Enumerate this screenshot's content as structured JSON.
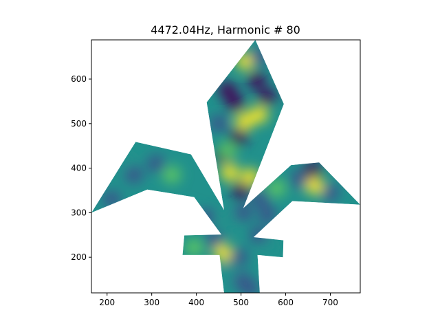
{
  "chart_data": {
    "type": "heatmap",
    "title": "4472.04Hz, Harmonic # 80",
    "xlabel": "",
    "ylabel": "",
    "xlim": [
      165,
      767
    ],
    "ylim": [
      120,
      688
    ],
    "xticks": [
      200,
      300,
      400,
      500,
      600,
      700
    ],
    "yticks": [
      200,
      300,
      400,
      500,
      600
    ],
    "xtick_labels": [
      "200",
      "300",
      "400",
      "500",
      "600",
      "700"
    ],
    "ytick_labels": [
      "200",
      "300",
      "400",
      "500",
      "600"
    ],
    "colormap": [
      "#440154",
      "#3b528b",
      "#21918c",
      "#5ec962",
      "#fde725"
    ],
    "region_outline": [
      [
        165,
        300
      ],
      [
        264,
        459
      ],
      [
        388,
        431
      ],
      [
        462,
        306
      ],
      [
        423,
        548
      ],
      [
        532,
        688
      ],
      [
        596,
        544
      ],
      [
        505,
        310
      ],
      [
        612,
        407
      ],
      [
        675,
        413
      ],
      [
        767,
        318
      ],
      [
        615,
        326
      ],
      [
        528,
        245
      ],
      [
        595,
        238
      ],
      [
        594,
        200
      ],
      [
        537,
        205
      ],
      [
        542,
        120
      ],
      [
        462,
        120
      ],
      [
        452,
        205
      ],
      [
        369,
        205
      ],
      [
        373,
        249
      ],
      [
        456,
        251
      ],
      [
        395,
        335
      ],
      [
        290,
        352
      ]
    ],
    "hotspots": [
      {
        "x": 475,
        "y": 390,
        "v": 1.0
      },
      {
        "x": 520,
        "y": 380,
        "v": 1.0
      },
      {
        "x": 500,
        "y": 350,
        "v": 0.0
      },
      {
        "x": 460,
        "y": 430,
        "v": 0.0
      },
      {
        "x": 495,
        "y": 470,
        "v": 0.05
      },
      {
        "x": 470,
        "y": 440,
        "v": 0.85
      },
      {
        "x": 508,
        "y": 505,
        "v": 0.95
      },
      {
        "x": 535,
        "y": 597,
        "v": 0.0
      },
      {
        "x": 510,
        "y": 640,
        "v": 0.9
      },
      {
        "x": 558,
        "y": 560,
        "v": 0.0
      },
      {
        "x": 470,
        "y": 575,
        "v": 0.1
      },
      {
        "x": 540,
        "y": 520,
        "v": 0.9
      },
      {
        "x": 450,
        "y": 500,
        "v": 0.15
      },
      {
        "x": 488,
        "y": 545,
        "v": 0.1
      },
      {
        "x": 540,
        "y": 650,
        "v": 0.2
      },
      {
        "x": 660,
        "y": 395,
        "v": 0.0
      },
      {
        "x": 665,
        "y": 360,
        "v": 0.9
      },
      {
        "x": 630,
        "y": 375,
        "v": 0.25
      },
      {
        "x": 700,
        "y": 345,
        "v": 0.15
      },
      {
        "x": 580,
        "y": 355,
        "v": 0.75
      },
      {
        "x": 545,
        "y": 330,
        "v": 0.2
      },
      {
        "x": 560,
        "y": 295,
        "v": 0.3
      },
      {
        "x": 235,
        "y": 420,
        "v": 0.55
      },
      {
        "x": 310,
        "y": 410,
        "v": 0.3
      },
      {
        "x": 345,
        "y": 385,
        "v": 0.7
      },
      {
        "x": 260,
        "y": 385,
        "v": 0.3
      },
      {
        "x": 210,
        "y": 330,
        "v": 0.35
      },
      {
        "x": 380,
        "y": 300,
        "v": 0.45
      },
      {
        "x": 420,
        "y": 290,
        "v": 0.25
      },
      {
        "x": 440,
        "y": 240,
        "v": 0.25
      },
      {
        "x": 395,
        "y": 222,
        "v": 0.8
      },
      {
        "x": 460,
        "y": 210,
        "v": 0.9
      },
      {
        "x": 495,
        "y": 200,
        "v": 0.15
      },
      {
        "x": 540,
        "y": 250,
        "v": 0.2
      },
      {
        "x": 570,
        "y": 222,
        "v": 0.4
      },
      {
        "x": 500,
        "y": 150,
        "v": 0.3
      },
      {
        "x": 520,
        "y": 130,
        "v": 0.2
      },
      {
        "x": 475,
        "y": 170,
        "v": 0.5
      },
      {
        "x": 505,
        "y": 300,
        "v": 0.3
      },
      {
        "x": 470,
        "y": 280,
        "v": 0.6
      }
    ]
  }
}
